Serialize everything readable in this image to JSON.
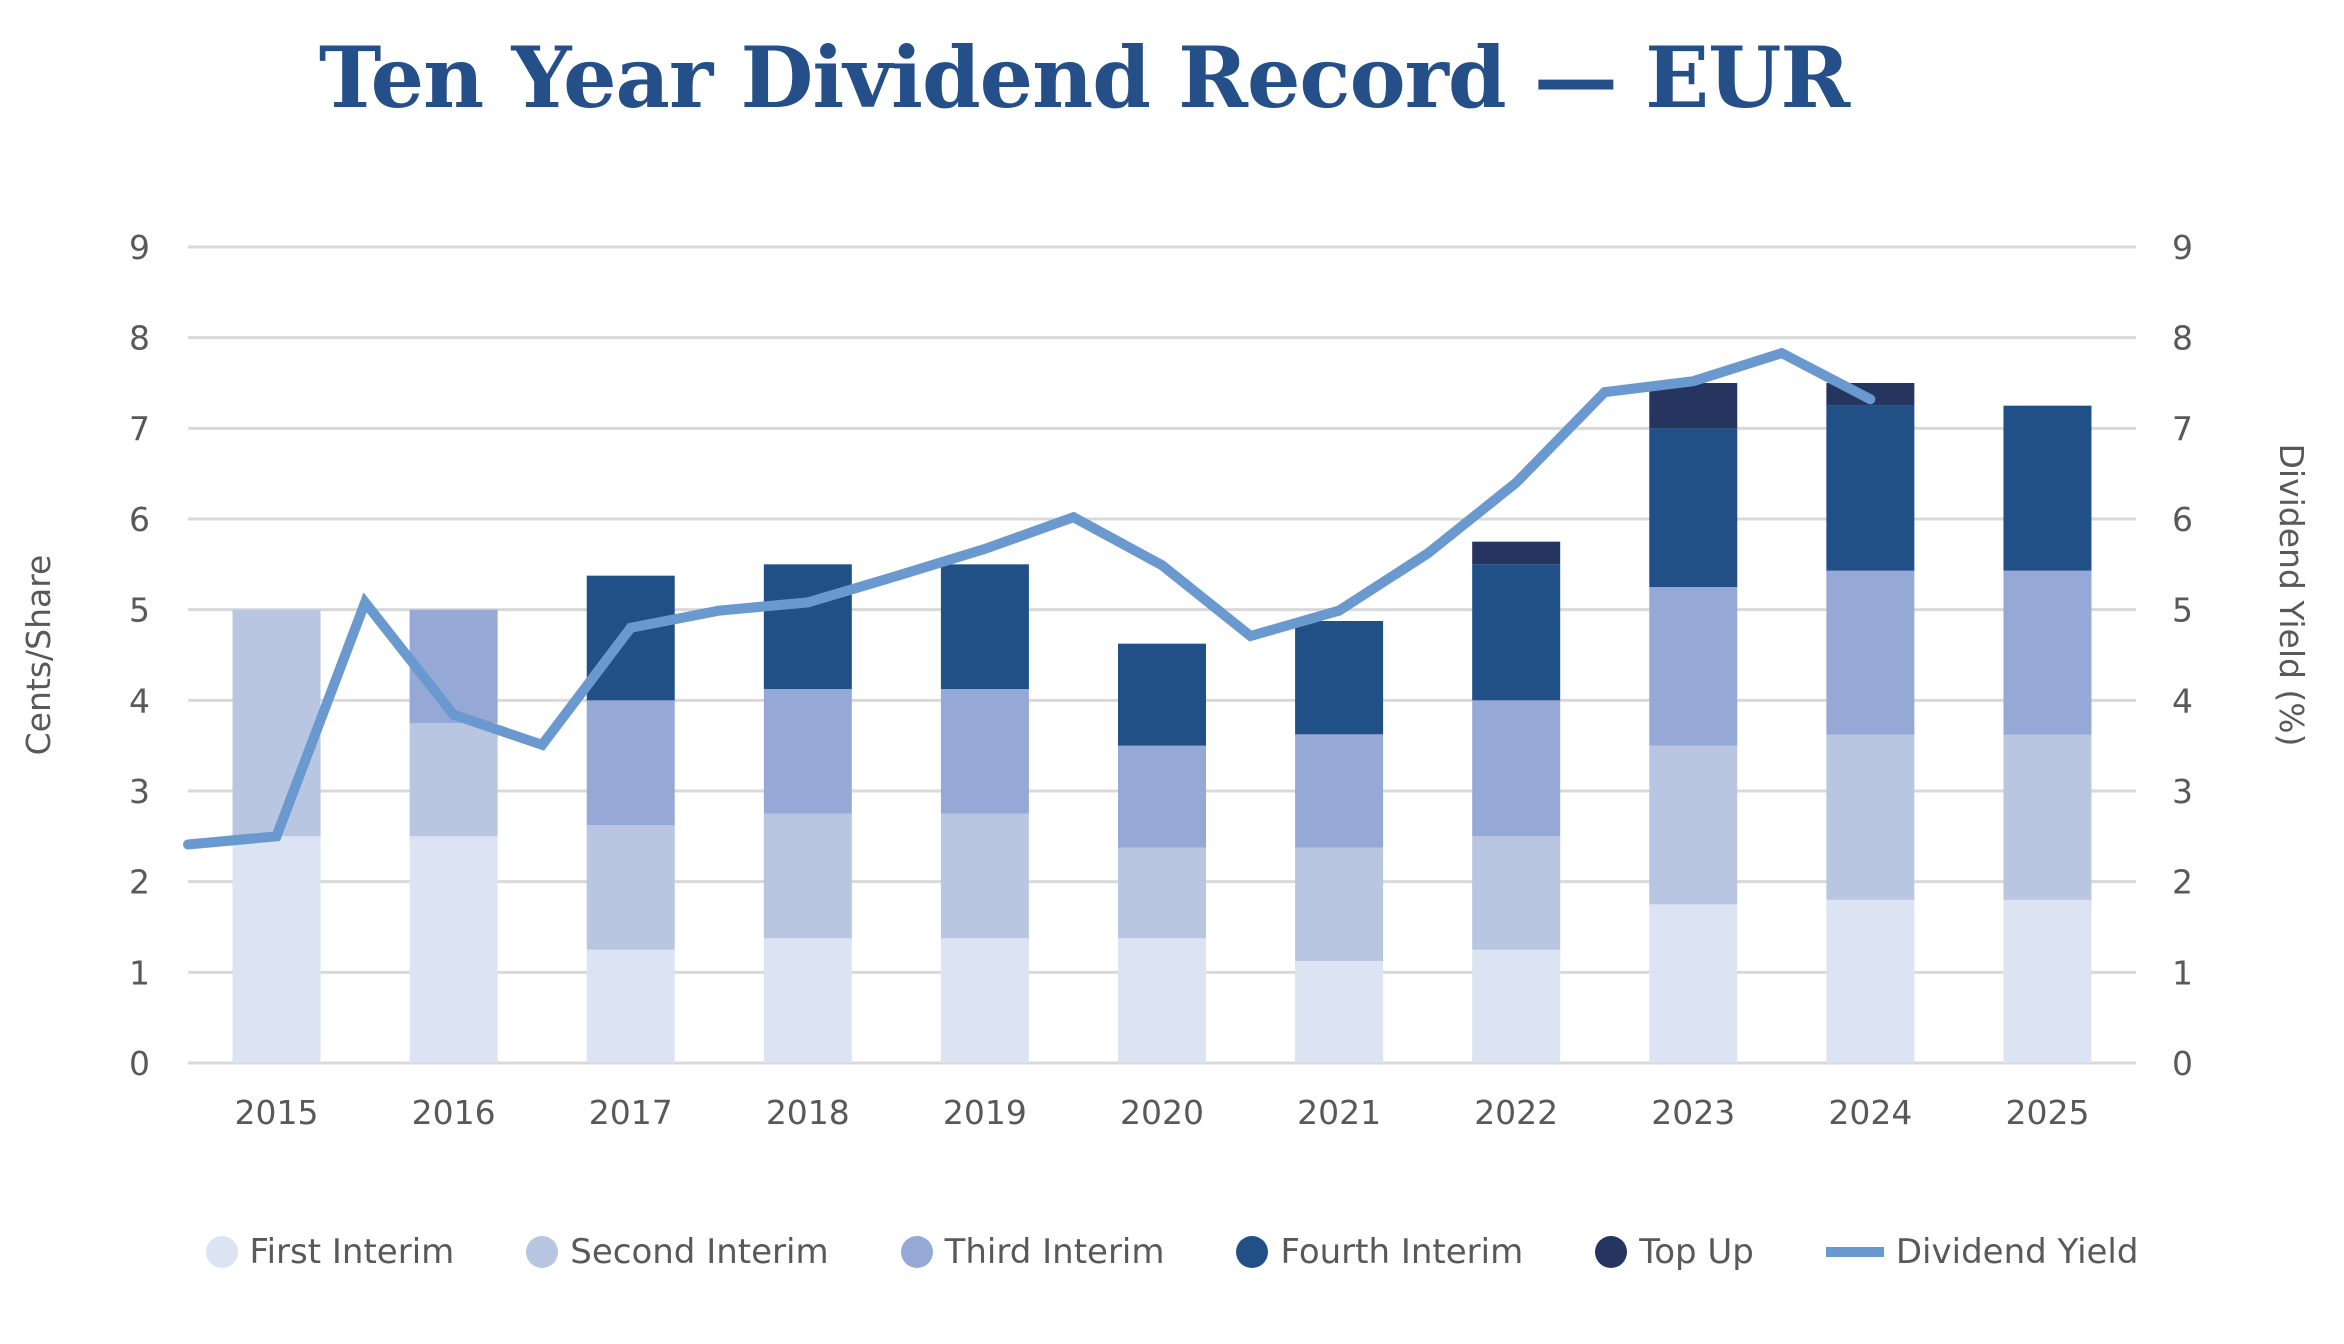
{
  "chart_data": {
    "type": "bar",
    "subtype": "stacked-bar-with-line",
    "title": "Ten Year Dividend Record — EUR",
    "xlabel": "",
    "ylabel": "Cents/Share",
    "y2label": "Dividend Yield (%)",
    "ylim": [
      0,
      9
    ],
    "y2lim": [
      0,
      9
    ],
    "yticks": [
      "0",
      "1",
      "2",
      "3",
      "4",
      "5",
      "6",
      "7",
      "8",
      "9"
    ],
    "y2ticks": [
      "0",
      "1",
      "2",
      "3",
      "4",
      "5",
      "6",
      "7",
      "8",
      "9"
    ],
    "grid": true,
    "legend_position": "bottom",
    "categories": [
      "2015",
      "2016",
      "2017",
      "2018",
      "2019",
      "2020",
      "2021",
      "2022",
      "2023",
      "2024",
      "2025"
    ],
    "series": [
      {
        "name": "First Interim",
        "color": "#DCE3F2",
        "values": [
          2.5,
          2.5,
          1.25,
          1.375,
          1.375,
          1.375,
          1.125,
          1.25,
          1.75,
          1.8,
          1.8
        ]
      },
      {
        "name": "Second Interim",
        "color": "#B8C6E2",
        "values": [
          2.5,
          1.25,
          1.375,
          1.375,
          1.375,
          1.0,
          1.25,
          1.25,
          1.75,
          1.82,
          1.82
        ]
      },
      {
        "name": "Third Interim",
        "color": "#96A9D6",
        "values": [
          0,
          1.25,
          1.375,
          1.375,
          1.375,
          1.125,
          1.25,
          1.5,
          1.75,
          1.81,
          1.81
        ]
      },
      {
        "name": "Fourth Interim",
        "color": "#215087",
        "values": [
          0,
          0,
          1.375,
          1.375,
          1.375,
          1.125,
          1.25,
          1.5,
          1.75,
          1.82,
          1.82
        ]
      },
      {
        "name": "Top Up",
        "color": "#253560",
        "values": [
          0,
          0,
          0,
          0,
          0,
          0,
          0,
          0.25,
          0.5,
          0.25,
          0
        ]
      }
    ],
    "line_series": {
      "name": "Dividend Yield",
      "axis": "right",
      "color": "#6999CE",
      "x": [
        2014.5,
        2015,
        2015.5,
        2016,
        2016.5,
        2017,
        2017.5,
        2018,
        2018.5,
        2019,
        2019.5,
        2020,
        2020.5,
        2021,
        2021.5,
        2022,
        2022.5,
        2023,
        2023.5,
        2024
      ],
      "values": [
        2.41,
        2.5,
        5.08,
        3.84,
        3.51,
        4.8,
        4.99,
        5.08,
        5.37,
        5.67,
        6.02,
        5.49,
        4.71,
        4.99,
        5.62,
        6.4,
        7.4,
        7.52,
        7.83,
        7.32
      ]
    }
  },
  "legend": [
    {
      "label": "First Interim",
      "kind": "dot",
      "color": "#DCE3F2"
    },
    {
      "label": "Second Interim",
      "kind": "dot",
      "color": "#B8C6E2"
    },
    {
      "label": "Third Interim",
      "kind": "dot",
      "color": "#96A9D6"
    },
    {
      "label": "Fourth Interim",
      "kind": "dot",
      "color": "#215087"
    },
    {
      "label": "Top Up",
      "kind": "dot",
      "color": "#253560"
    },
    {
      "label": "Dividend Yield",
      "kind": "line",
      "color": "#6999CE"
    }
  ],
  "colors": {
    "title": "#244F89",
    "text": "#595959",
    "grid": "#D9D9D9"
  }
}
